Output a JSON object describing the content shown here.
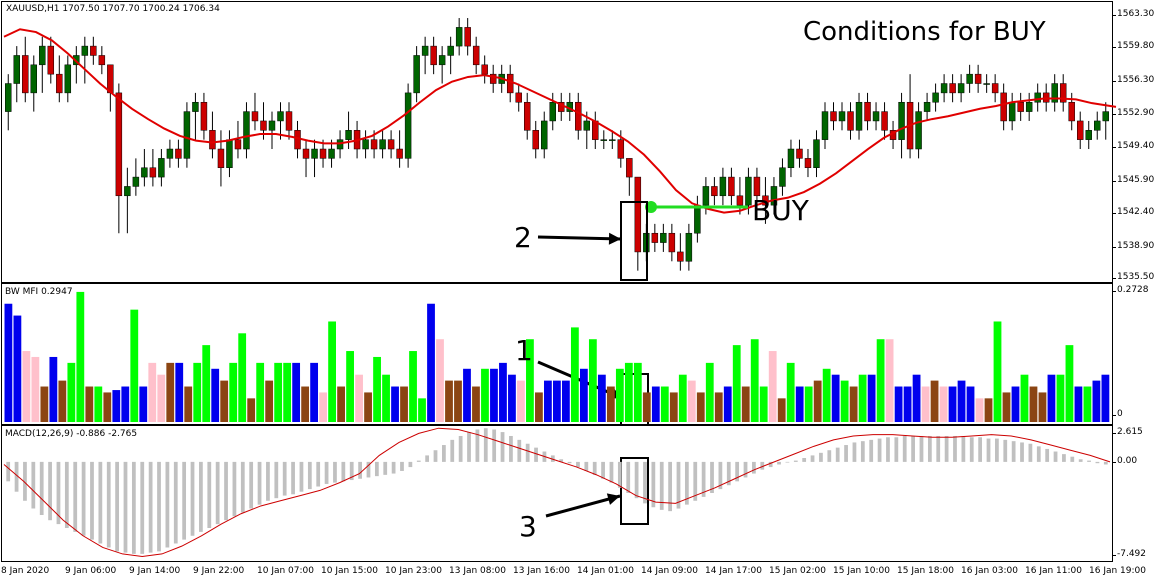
{
  "chart": {
    "symbol_header": "XAUUSD,H1  1707.50 1707.70 1700.24 1706.34",
    "title": "Conditions for BUY",
    "buy_label": "BUY",
    "annotations": [
      "1",
      "2",
      "3"
    ]
  },
  "price_axis": [
    "1563.30",
    "1559.80",
    "1556.30",
    "1552.90",
    "1549.40",
    "1545.90",
    "1542.40",
    "1538.90",
    "1535.50"
  ],
  "mfi": {
    "label": "BW MFI 0.2947",
    "axis_top": "0.2728",
    "axis_bottom": "0"
  },
  "macd": {
    "label": "MACD(12,26,9) -0.886 -2.765",
    "axis_top": "2.615",
    "axis_mid": "0.00",
    "axis_bottom": "-7.492"
  },
  "time_axis": [
    "8 Jan 2020",
    "9 Jan 06:00",
    "9 Jan 14:00",
    "9 Jan 22:00",
    "10 Jan 07:00",
    "10 Jan 15:00",
    "10 Jan 23:00",
    "13 Jan 08:00",
    "13 Jan 16:00",
    "14 Jan 01:00",
    "14 Jan 09:00",
    "14 Jan 17:00",
    "15 Jan 02:00",
    "15 Jan 10:00",
    "15 Jan 18:00",
    "16 Jan 03:00",
    "16 Jan 11:00",
    "16 Jan 19:00"
  ],
  "colors": {
    "bull": "#006400",
    "bear": "#cc0000",
    "ma": "#e00000",
    "buy": "#22dd22",
    "mfi_green": "#00ff00",
    "mfi_blue": "#0000ee",
    "mfi_pink": "#ffc0cb",
    "mfi_brown": "#8b4513",
    "macd_hist": "#c0c0c0",
    "macd_signal": "#cc0000"
  },
  "chart_data": {
    "type": "candlestick",
    "price_ylim": [
      1535.0,
      1564.5
    ],
    "candles": [
      [
        1553,
        1557,
        1551,
        1556
      ],
      [
        1556,
        1560,
        1554,
        1559
      ],
      [
        1559,
        1561,
        1554,
        1555
      ],
      [
        1555,
        1559,
        1553,
        1558
      ],
      [
        1558,
        1561,
        1555,
        1560
      ],
      [
        1560,
        1561,
        1556,
        1557
      ],
      [
        1557,
        1559,
        1554,
        1555
      ],
      [
        1555,
        1559,
        1554,
        1558
      ],
      [
        1558,
        1560,
        1556,
        1559
      ],
      [
        1559,
        1561,
        1556,
        1560
      ],
      [
        1560,
        1561,
        1558,
        1559
      ],
      [
        1559,
        1560,
        1557,
        1558
      ],
      [
        1558,
        1558,
        1553,
        1555
      ],
      [
        1555,
        1556,
        1540,
        1544
      ],
      [
        1544,
        1547,
        1540,
        1545
      ],
      [
        1545,
        1548,
        1544,
        1546
      ],
      [
        1546,
        1549,
        1545,
        1547
      ],
      [
        1547,
        1549,
        1545,
        1546
      ],
      [
        1546,
        1549,
        1545,
        1548
      ],
      [
        1548,
        1550,
        1547,
        1549
      ],
      [
        1549,
        1550,
        1547,
        1548
      ],
      [
        1548,
        1554,
        1547,
        1553
      ],
      [
        1553,
        1555,
        1550,
        1554
      ],
      [
        1554,
        1555,
        1550,
        1551
      ],
      [
        1551,
        1553,
        1548,
        1549
      ],
      [
        1549,
        1551,
        1545,
        1547
      ],
      [
        1547,
        1551,
        1546,
        1550
      ],
      [
        1550,
        1552,
        1548,
        1549
      ],
      [
        1549,
        1554,
        1548,
        1553
      ],
      [
        1553,
        1555,
        1551,
        1552
      ],
      [
        1552,
        1554,
        1550,
        1551
      ],
      [
        1551,
        1553,
        1549,
        1552
      ],
      [
        1552,
        1554,
        1550,
        1553
      ],
      [
        1553,
        1554,
        1550,
        1551
      ],
      [
        1551,
        1552,
        1548,
        1549
      ],
      [
        1549,
        1550,
        1546,
        1548
      ],
      [
        1548,
        1550,
        1546,
        1549
      ],
      [
        1549,
        1550,
        1547,
        1548
      ],
      [
        1548,
        1550,
        1547,
        1549
      ],
      [
        1549,
        1551,
        1548,
        1550
      ],
      [
        1550,
        1553,
        1549,
        1551
      ],
      [
        1551,
        1552,
        1548,
        1549
      ],
      [
        1549,
        1551,
        1548,
        1550
      ],
      [
        1550,
        1551,
        1548,
        1549
      ],
      [
        1549,
        1551,
        1548,
        1550
      ],
      [
        1550,
        1551,
        1548,
        1549
      ],
      [
        1549,
        1551,
        1547,
        1548
      ],
      [
        1548,
        1556,
        1547,
        1555
      ],
      [
        1555,
        1560,
        1554,
        1559
      ],
      [
        1559,
        1561,
        1557,
        1560
      ],
      [
        1560,
        1561,
        1557,
        1558
      ],
      [
        1558,
        1560,
        1556,
        1559
      ],
      [
        1559,
        1561,
        1557,
        1560
      ],
      [
        1560,
        1563,
        1559,
        1562
      ],
      [
        1562,
        1563,
        1559,
        1560
      ],
      [
        1560,
        1561,
        1557,
        1558
      ],
      [
        1558,
        1559,
        1556,
        1557
      ],
      [
        1557,
        1558,
        1555,
        1556
      ],
      [
        1556,
        1558,
        1555,
        1557
      ],
      [
        1557,
        1558,
        1554,
        1555
      ],
      [
        1555,
        1556,
        1553,
        1554
      ],
      [
        1554,
        1555,
        1550,
        1551
      ],
      [
        1551,
        1552,
        1548,
        1549
      ],
      [
        1549,
        1553,
        1548,
        1552
      ],
      [
        1552,
        1555,
        1551,
        1554
      ],
      [
        1554,
        1555,
        1552,
        1553
      ],
      [
        1553,
        1555,
        1552,
        1554
      ],
      [
        1554,
        1555,
        1550,
        1551
      ],
      [
        1551,
        1553,
        1549,
        1552
      ],
      [
        1552,
        1553,
        1549,
        1550
      ],
      [
        1550,
        1551,
        1549,
        1550
      ],
      [
        1550,
        1551,
        1549,
        1550
      ],
      [
        1550,
        1551,
        1547,
        1548
      ],
      [
        1548,
        1548,
        1544,
        1546
      ],
      [
        1546,
        1546,
        1536,
        1538
      ],
      [
        1538,
        1541,
        1537,
        1540
      ],
      [
        1540,
        1541,
        1538,
        1539
      ],
      [
        1539,
        1541,
        1538,
        1540
      ],
      [
        1540,
        1541,
        1537,
        1538
      ],
      [
        1538,
        1540,
        1536,
        1537
      ],
      [
        1537,
        1541,
        1536,
        1540
      ],
      [
        1540,
        1544,
        1539,
        1543
      ],
      [
        1543,
        1546,
        1542,
        1545
      ],
      [
        1545,
        1546,
        1543,
        1544
      ],
      [
        1544,
        1547,
        1543,
        1546
      ],
      [
        1546,
        1547,
        1543,
        1544
      ],
      [
        1544,
        1546,
        1542,
        1543
      ],
      [
        1543,
        1547,
        1542,
        1546
      ],
      [
        1546,
        1547,
        1543,
        1544
      ],
      [
        1544,
        1546,
        1541,
        1543
      ],
      [
        1543,
        1546,
        1542,
        1545
      ],
      [
        1545,
        1548,
        1544,
        1547
      ],
      [
        1547,
        1550,
        1546,
        1549
      ],
      [
        1549,
        1550,
        1547,
        1548
      ],
      [
        1548,
        1549,
        1546,
        1547
      ],
      [
        1547,
        1551,
        1546,
        1550
      ],
      [
        1550,
        1554,
        1549,
        1553
      ],
      [
        1553,
        1554,
        1551,
        1552
      ],
      [
        1552,
        1554,
        1551,
        1553
      ],
      [
        1553,
        1554,
        1550,
        1551
      ],
      [
        1551,
        1555,
        1550,
        1554
      ],
      [
        1554,
        1555,
        1551,
        1552
      ],
      [
        1552,
        1554,
        1551,
        1553
      ],
      [
        1553,
        1554,
        1550,
        1551
      ],
      [
        1551,
        1552,
        1549,
        1550
      ],
      [
        1550,
        1555,
        1548,
        1554
      ],
      [
        1554,
        1557,
        1548,
        1549
      ],
      [
        1549,
        1554,
        1548,
        1553
      ],
      [
        1553,
        1555,
        1552,
        1554
      ],
      [
        1554,
        1556,
        1553,
        1555
      ],
      [
        1555,
        1557,
        1554,
        1556
      ],
      [
        1556,
        1557,
        1554,
        1555
      ],
      [
        1555,
        1557,
        1554,
        1556
      ],
      [
        1556,
        1558,
        1555,
        1557
      ],
      [
        1557,
        1558,
        1555,
        1556
      ],
      [
        1556,
        1557,
        1555,
        1556
      ],
      [
        1556,
        1557,
        1554,
        1555
      ],
      [
        1555,
        1556,
        1551,
        1552
      ],
      [
        1552,
        1555,
        1551,
        1554
      ],
      [
        1554,
        1555,
        1552,
        1553
      ],
      [
        1553,
        1555,
        1552,
        1554
      ],
      [
        1554,
        1556,
        1553,
        1555
      ],
      [
        1555,
        1556,
        1553,
        1554
      ],
      [
        1554,
        1557,
        1553,
        1556
      ],
      [
        1556,
        1557,
        1553,
        1554
      ],
      [
        1554,
        1555,
        1551,
        1552
      ],
      [
        1552,
        1553,
        1549,
        1550
      ],
      [
        1550,
        1552,
        1549,
        1551
      ],
      [
        1551,
        1553,
        1550,
        1552
      ],
      [
        1552,
        1554,
        1550,
        1553
      ]
    ],
    "ma": [
      1561,
      1561.8,
      1561.5,
      1560.6,
      1559.2,
      1557.6,
      1556,
      1554.6,
      1553.3,
      1552.2,
      1551.2,
      1550.4,
      1549.9,
      1549.7,
      1549.9,
      1550.3,
      1550.6,
      1550.6,
      1550.3,
      1549.9,
      1549.6,
      1549.6,
      1549.9,
      1550.4,
      1551.4,
      1552.6,
      1554,
      1555.3,
      1556.2,
      1556.7,
      1556.9,
      1556.6,
      1556,
      1555.2,
      1554.4,
      1553.6,
      1552.8,
      1551.9,
      1550.9,
      1549.8,
      1548.4,
      1546.6,
      1544.6,
      1543.2,
      1542.6,
      1542.2,
      1542.4,
      1543,
      1543.5,
      1543.8,
      1544.4,
      1545.3,
      1546.4,
      1547.7,
      1549,
      1550.2,
      1551.1,
      1551.8,
      1552.2,
      1552.5,
      1552.9,
      1553.3,
      1553.6,
      1554,
      1554.2,
      1554.4,
      1554.4,
      1554.3,
      1553.9,
      1553.5
    ],
    "ma_x": [
      0,
      16,
      32,
      48,
      64,
      80,
      96,
      112,
      128,
      144,
      160,
      176,
      192,
      208,
      224,
      240,
      256,
      272,
      288,
      304,
      320,
      336,
      352,
      368,
      384,
      400,
      416,
      432,
      448,
      464,
      480,
      496,
      512,
      528,
      544,
      560,
      576,
      592,
      608,
      624,
      640,
      656,
      672,
      688,
      704,
      720,
      736,
      752,
      768,
      784,
      800,
      816,
      832,
      848,
      864,
      880,
      896,
      912,
      928,
      944,
      960,
      976,
      992,
      1008,
      1024,
      1040,
      1056,
      1072,
      1088,
      1112
    ],
    "mfi_bars": [
      [
        "b",
        1
      ],
      [
        "b",
        0.9
      ],
      [
        "p",
        0.6
      ],
      [
        "p",
        0.55
      ],
      [
        "n",
        0.3
      ],
      [
        "b",
        0.55
      ],
      [
        "n",
        0.35
      ],
      [
        "g",
        0.5
      ],
      [
        "g",
        1.1
      ],
      [
        "n",
        0.3
      ],
      [
        "g",
        0.3
      ],
      [
        "n",
        0.25
      ],
      [
        "b",
        0.27
      ],
      [
        "b",
        0.3
      ],
      [
        "g",
        0.95
      ],
      [
        "b",
        0.3
      ],
      [
        "p",
        0.5
      ],
      [
        "p",
        0.4
      ],
      [
        "n",
        0.5
      ],
      [
        "b",
        0.5
      ],
      [
        "n",
        0.3
      ],
      [
        "g",
        0.5
      ],
      [
        "g",
        0.65
      ],
      [
        "b",
        0.45
      ],
      [
        "n",
        0.35
      ],
      [
        "g",
        0.5
      ],
      [
        "g",
        0.75
      ],
      [
        "n",
        0.2
      ],
      [
        "g",
        0.5
      ],
      [
        "n",
        0.35
      ],
      [
        "g",
        0.5
      ],
      [
        "g",
        0.5
      ],
      [
        "b",
        0.5
      ],
      [
        "n",
        0.3
      ],
      [
        "b",
        0.5
      ],
      [
        "p",
        0.25
      ],
      [
        "g",
        0.85
      ],
      [
        "n",
        0.3
      ],
      [
        "g",
        0.6
      ],
      [
        "p",
        0.4
      ],
      [
        "n",
        0.25
      ],
      [
        "g",
        0.55
      ],
      [
        "g",
        0.4
      ],
      [
        "b",
        0.3
      ],
      [
        "n",
        0.3
      ],
      [
        "g",
        0.6
      ],
      [
        "g",
        0.2
      ],
      [
        "b",
        1
      ],
      [
        "p",
        0.7
      ],
      [
        "n",
        0.35
      ],
      [
        "n",
        0.35
      ],
      [
        "b",
        0.45
      ],
      [
        "n",
        0.3
      ],
      [
        "g",
        0.45
      ],
      [
        "b",
        0.45
      ],
      [
        "b",
        0.5
      ],
      [
        "b",
        0.4
      ],
      [
        "p",
        0.35
      ],
      [
        "g",
        0.7
      ],
      [
        "n",
        0.25
      ],
      [
        "b",
        0.35
      ],
      [
        "b",
        0.35
      ],
      [
        "b",
        0.35
      ],
      [
        "g",
        0.8
      ],
      [
        "b",
        0.45
      ],
      [
        "g",
        0.7
      ],
      [
        "b",
        0.4
      ],
      [
        "n",
        0.3
      ],
      [
        "g",
        0.45
      ],
      [
        "g",
        0.5
      ],
      [
        "g",
        0.5
      ],
      [
        "n",
        0.25
      ],
      [
        "b",
        0.3
      ],
      [
        "g",
        0.3
      ],
      [
        "n",
        0.25
      ],
      [
        "g",
        0.4
      ],
      [
        "p",
        0.35
      ],
      [
        "n",
        0.25
      ],
      [
        "g",
        0.5
      ],
      [
        "n",
        0.25
      ],
      [
        "b",
        0.3
      ],
      [
        "g",
        0.65
      ],
      [
        "n",
        0.3
      ],
      [
        "g",
        0.7
      ],
      [
        "g",
        0.3
      ],
      [
        "p",
        0.6
      ],
      [
        "n",
        0.2
      ],
      [
        "g",
        0.5
      ],
      [
        "b",
        0.3
      ],
      [
        "g",
        0.3
      ],
      [
        "n",
        0.35
      ],
      [
        "g",
        0.45
      ],
      [
        "b",
        0.4
      ],
      [
        "g",
        0.35
      ],
      [
        "n",
        0.3
      ],
      [
        "g",
        0.4
      ],
      [
        "b",
        0.4
      ],
      [
        "g",
        0.7
      ],
      [
        "p",
        0.7
      ],
      [
        "b",
        0.3
      ],
      [
        "b",
        0.3
      ],
      [
        "b",
        0.4
      ],
      [
        "p",
        0.3
      ],
      [
        "n",
        0.35
      ],
      [
        "p",
        0.3
      ],
      [
        "b",
        0.3
      ],
      [
        "b",
        0.35
      ],
      [
        "b",
        0.3
      ],
      [
        "p",
        0.2
      ],
      [
        "n",
        0.2
      ],
      [
        "g",
        0.85
      ],
      [
        "n",
        0.25
      ],
      [
        "b",
        0.3
      ],
      [
        "g",
        0.4
      ],
      [
        "n",
        0.3
      ],
      [
        "n",
        0.25
      ],
      [
        "b",
        0.4
      ],
      [
        "g",
        0.4
      ],
      [
        "g",
        0.65
      ],
      [
        "b",
        0.3
      ],
      [
        "g",
        0.3
      ],
      [
        "b",
        0.35
      ],
      [
        "b",
        0.4
      ]
    ],
    "macd_hist": [
      -1.5,
      -2.3,
      -3,
      -3.6,
      -4.1,
      -4.5,
      -4.8,
      -5.1,
      -5.4,
      -5.7,
      -6,
      -6.3,
      -6.6,
      -6.9,
      -7,
      -7.1,
      -7.1,
      -7,
      -6.9,
      -6.6,
      -6.3,
      -6,
      -5.7,
      -5.4,
      -5.1,
      -4.8,
      -4.5,
      -4.2,
      -3.9,
      -3.6,
      -3.3,
      -3,
      -2.8,
      -2.6,
      -2.5,
      -2.3,
      -2.1,
      -1.9,
      -1.7,
      -1.6,
      -1.5,
      -1.4,
      -1.3,
      -1.2,
      -1.1,
      -1,
      -0.9,
      -0.7,
      -0.4,
      0.1,
      0.5,
      0.9,
      1.3,
      1.7,
      2,
      2.3,
      2.5,
      2.6,
      2.5,
      2.3,
      2,
      1.7,
      1.4,
      1.1,
      0.8,
      0.5,
      0.2,
      -0.1,
      -0.4,
      -0.7,
      -1,
      -1.3,
      -1.6,
      -2,
      -2.4,
      -2.8,
      -3.2,
      -3.5,
      -3.7,
      -3.8,
      -3.6,
      -3.3,
      -3,
      -2.7,
      -2.4,
      -2.1,
      -1.8,
      -1.5,
      -1.2,
      -0.9,
      -0.6,
      -0.4,
      -0.2,
      -0.05,
      0.1,
      0.3,
      0.5,
      0.7,
      0.9,
      1.1,
      1.3,
      1.5,
      1.6,
      1.7,
      1.8,
      1.9,
      1.9,
      2,
      2,
      2,
      2,
      2,
      2,
      2,
      2,
      1.9,
      1.9,
      1.8,
      1.8,
      1.7,
      1.6,
      1.5,
      1.4,
      1.2,
      1,
      0.8,
      0.6,
      0.4,
      0.2,
      0.1,
      -0.1,
      -0.2
    ],
    "macd_signal": [
      -0.2,
      -1.5,
      -3,
      -4.5,
      -5.7,
      -6.6,
      -7.1,
      -7.3,
      -7.1,
      -6.5,
      -5.7,
      -4.8,
      -4,
      -3.4,
      -3,
      -2.6,
      -2.2,
      -1.6,
      -0.9,
      0.5,
      1.5,
      2.2,
      2.6,
      2.5,
      2.1,
      1.6,
      1.1,
      0.6,
      0.1,
      -0.4,
      -1,
      -1.7,
      -2.6,
      -3.1,
      -3.2,
      -2.6,
      -2,
      -1.3,
      -0.6,
      0,
      0.6,
      1.2,
      1.7,
      2,
      2.1,
      2.1,
      2,
      1.9,
      1.9,
      2,
      2.1,
      2,
      1.7,
      1.3,
      0.9,
      0.5,
      0
    ],
    "macd_ylim": [
      -7.492,
      2.615
    ]
  }
}
